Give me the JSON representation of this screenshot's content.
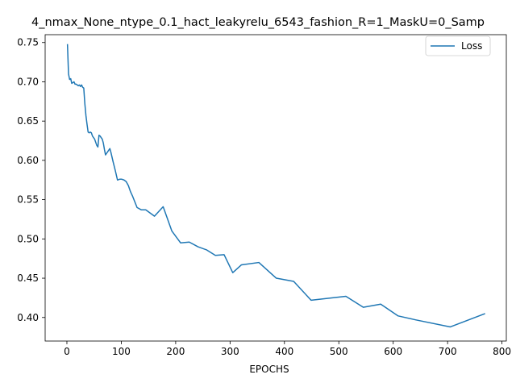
{
  "chart_data": {
    "type": "line",
    "title": "4_nmax_None_ntype_0.1_hact_leakyrelu_6543_fashion_R=1_MaskU=0_Samp",
    "xlabel": "EPOCHS",
    "ylabel": "",
    "xlim": [
      -40,
      808
    ],
    "ylim": [
      0.37,
      0.76
    ],
    "xticks": [
      0,
      100,
      200,
      300,
      400,
      500,
      600,
      700,
      800
    ],
    "yticks": [
      0.4,
      0.45,
      0.5,
      0.55,
      0.6,
      0.65,
      0.7,
      0.75
    ],
    "grid": false,
    "legend_position": "top-right",
    "line_color": "#1f77b4",
    "series": [
      {
        "name": "Loss",
        "x": [
          1,
          3,
          5,
          7,
          9,
          11,
          13,
          15,
          17,
          19,
          21,
          23,
          25,
          27,
          29,
          31,
          33,
          35,
          37,
          39,
          41,
          43,
          45,
          47,
          49,
          51,
          53,
          55,
          57,
          59,
          61,
          63,
          65,
          67,
          69,
          71,
          73,
          75,
          77,
          79,
          81,
          85,
          89,
          93,
          97,
          101,
          105,
          109,
          113,
          117,
          121,
          129,
          137,
          145,
          161,
          177,
          193,
          209,
          225,
          241,
          257,
          273,
          289,
          305,
          321,
          353,
          385,
          417,
          449,
          513,
          545,
          577,
          609,
          641,
          705,
          769
        ],
        "y": [
          0.748,
          0.71,
          0.703,
          0.704,
          0.698,
          0.699,
          0.7,
          0.697,
          0.697,
          0.696,
          0.695,
          0.696,
          0.694,
          0.696,
          0.693,
          0.692,
          0.672,
          0.657,
          0.646,
          0.636,
          0.635,
          0.636,
          0.635,
          0.631,
          0.629,
          0.627,
          0.623,
          0.619,
          0.617,
          0.632,
          0.631,
          0.629,
          0.627,
          0.622,
          0.614,
          0.607,
          0.609,
          0.611,
          0.613,
          0.615,
          0.61,
          0.598,
          0.587,
          0.575,
          0.576,
          0.576,
          0.575,
          0.573,
          0.568,
          0.56,
          0.554,
          0.54,
          0.537,
          0.537,
          0.529,
          0.541,
          0.51,
          0.495,
          0.496,
          0.49,
          0.486,
          0.479,
          0.48,
          0.457,
          0.467,
          0.47,
          0.45,
          0.446,
          0.422,
          0.427,
          0.413,
          0.417,
          0.402,
          0.397,
          0.388,
          0.405
        ]
      }
    ]
  }
}
